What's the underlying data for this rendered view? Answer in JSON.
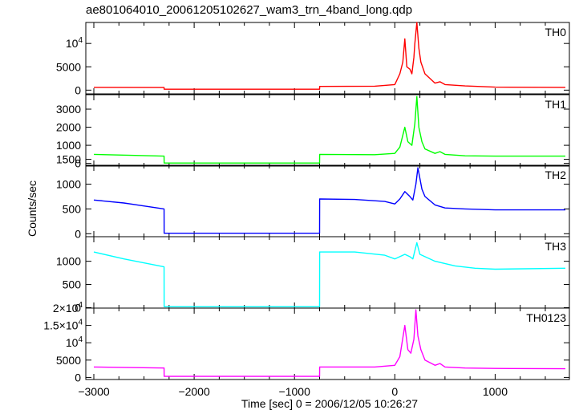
{
  "page": {
    "title": "ae801064010_20061205102627_wam3_trn_4band_long.qdp"
  },
  "chart_data": {
    "type": "line",
    "title": "ae801064010_20061205102627_wam3_trn_4band_long.qdp",
    "xlabel": "Time [sec] 0 = 2006/12/05 10:26:27",
    "ylabel": "Counts/sec",
    "xlim": [
      -3080,
      1740
    ],
    "x_ticks": [
      {
        "value": -3000,
        "label": "−3000"
      },
      {
        "value": -2000,
        "label": "−2000"
      },
      {
        "value": -1000,
        "label": "−1000"
      },
      {
        "value": 0,
        "label": "0"
      },
      {
        "value": 1000,
        "label": "1000"
      }
    ],
    "panels": [
      {
        "name": "TH0",
        "color": "#ff0000",
        "ylim": [
          -800,
          14500
        ],
        "y_ticks": [
          {
            "value": 0,
            "label": "0"
          },
          {
            "value": 5000,
            "label": "5000"
          },
          {
            "value": 10000,
            "label": "10",
            "sup": "4"
          }
        ],
        "x": [
          -3000,
          -2300,
          -2299,
          -750,
          -749,
          -200,
          0,
          50,
          80,
          100,
          120,
          150,
          170,
          190,
          200,
          220,
          240,
          260,
          300,
          400,
          450,
          500,
          700,
          1000,
          1700
        ],
        "y": [
          600,
          550,
          200,
          200,
          800,
          850,
          1200,
          3500,
          6000,
          11000,
          5000,
          4500,
          3500,
          7000,
          10000,
          14500,
          9000,
          6000,
          3500,
          1500,
          1800,
          1200,
          900,
          650,
          600
        ]
      },
      {
        "name": "TH1",
        "color": "#00ff00",
        "ylim": [
          -150,
          3800
        ],
        "y_ticks": [
          {
            "value": 0,
            "label": "0"
          },
          {
            "value": 1000,
            "label": "1000"
          },
          {
            "value": 2000,
            "label": "2000"
          },
          {
            "value": 3000,
            "label": "3000"
          }
        ],
        "x": [
          -3000,
          -2300,
          -2299,
          -750,
          -749,
          -200,
          0,
          50,
          100,
          130,
          170,
          200,
          220,
          240,
          270,
          300,
          400,
          450,
          500,
          700,
          1000,
          1700
        ],
        "y": [
          500,
          400,
          20,
          20,
          500,
          480,
          550,
          900,
          2000,
          1200,
          1000,
          2200,
          3700,
          2000,
          1200,
          800,
          550,
          650,
          500,
          420,
          400,
          400
        ]
      },
      {
        "name": "TH2",
        "color": "#0000ff",
        "ylim": [
          -60,
          1380
        ],
        "y_ticks": [
          {
            "value": 0,
            "label": "0"
          },
          {
            "value": 500,
            "label": "500"
          },
          {
            "value": 1000,
            "label": "1000"
          },
          {
            "value": 1500,
            "label": "1500"
          }
        ],
        "x": [
          -3000,
          -2700,
          -2300,
          -2299,
          -750,
          -749,
          -400,
          -100,
          0,
          50,
          100,
          150,
          180,
          210,
          230,
          270,
          300,
          400,
          500,
          700,
          1000,
          1700
        ],
        "y": [
          680,
          620,
          500,
          10,
          10,
          700,
          690,
          650,
          600,
          700,
          850,
          750,
          680,
          1000,
          1330,
          900,
          750,
          580,
          520,
          500,
          480,
          480
        ]
      },
      {
        "name": "TH3",
        "color": "#00ffff",
        "ylim": [
          -10,
          1530
        ],
        "y_ticks": [
          {
            "value": 0,
            "label": "0"
          },
          {
            "value": 500,
            "label": "500"
          },
          {
            "value": 1000,
            "label": "1000"
          }
        ],
        "x": [
          -3000,
          -2700,
          -2300,
          -2299,
          -750,
          -749,
          -400,
          -100,
          0,
          100,
          150,
          180,
          220,
          250,
          300,
          400,
          600,
          800,
          1000,
          1700
        ],
        "y": [
          1200,
          1050,
          880,
          20,
          20,
          1200,
          1200,
          1130,
          1050,
          1150,
          1100,
          1050,
          1400,
          1150,
          1100,
          1000,
          900,
          850,
          830,
          850
        ]
      },
      {
        "name": "TH0123",
        "color": "#ff00ff",
        "ylim": [
          -600,
          20000
        ],
        "y_ticks": [
          {
            "value": 0,
            "label": "0"
          },
          {
            "value": 5000,
            "label": "5000"
          },
          {
            "value": 10000,
            "label": "10",
            "sup": "4"
          },
          {
            "value": 15000,
            "label": "1.5×10",
            "sup": "4"
          },
          {
            "value": 20000,
            "label": "2×10",
            "sup": "4"
          }
        ],
        "x": [
          -3000,
          -2300,
          -2299,
          -750,
          -749,
          -200,
          0,
          50,
          100,
          130,
          160,
          190,
          210,
          230,
          260,
          300,
          400,
          450,
          500,
          700,
          1000,
          1700
        ],
        "y": [
          3000,
          2700,
          300,
          300,
          3000,
          3000,
          3500,
          6000,
          15000,
          8000,
          7000,
          11000,
          19500,
          12000,
          8000,
          5000,
          3500,
          4000,
          3000,
          2700,
          2600,
          2500
        ]
      }
    ]
  }
}
